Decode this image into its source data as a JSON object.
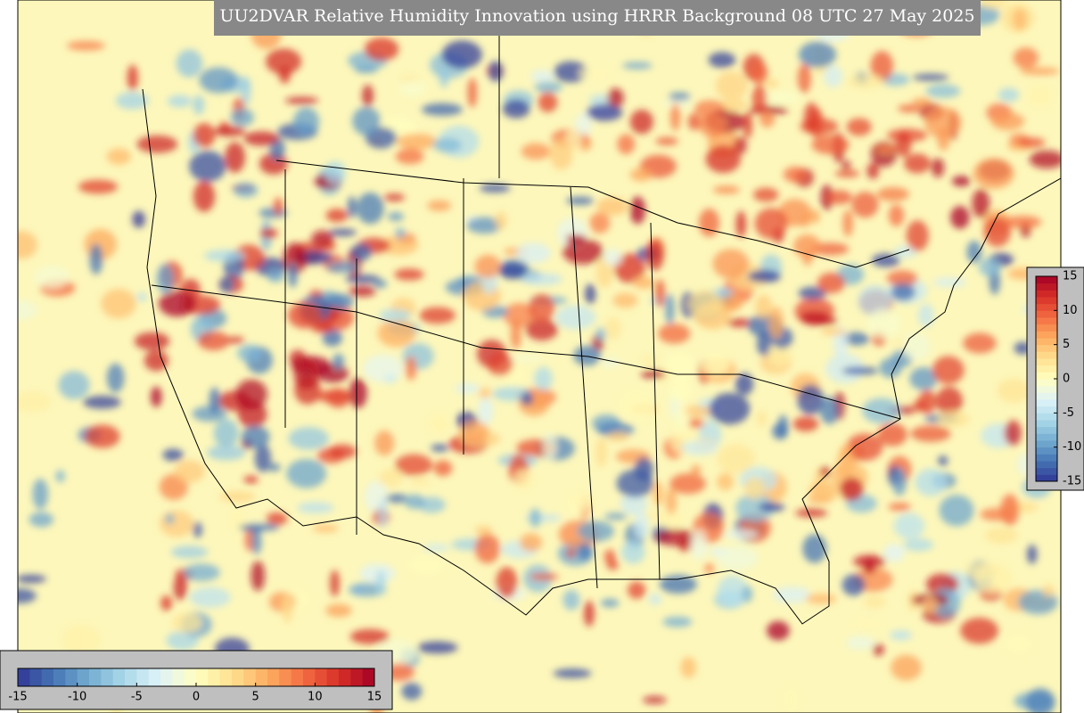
{
  "title": "UU2DVAR Relative Humidity Innovation using HRRR Background 08 UTC 27 May 2025",
  "colormap": {
    "range": [
      -15,
      15
    ],
    "colors": [
      "#313695",
      "#4575b4",
      "#74add1",
      "#abd9e9",
      "#e0f3f8",
      "#ffffbf",
      "#fee090",
      "#fdae61",
      "#f46d43",
      "#d73027",
      "#a50026"
    ]
  },
  "colorbars": [
    {
      "orientation": "horizontal",
      "ticks": [
        -15,
        -10,
        -5,
        0,
        5,
        10,
        15
      ]
    },
    {
      "orientation": "vertical",
      "ticks": [
        -15,
        -10,
        -5,
        0,
        5,
        10,
        15
      ]
    }
  ]
}
